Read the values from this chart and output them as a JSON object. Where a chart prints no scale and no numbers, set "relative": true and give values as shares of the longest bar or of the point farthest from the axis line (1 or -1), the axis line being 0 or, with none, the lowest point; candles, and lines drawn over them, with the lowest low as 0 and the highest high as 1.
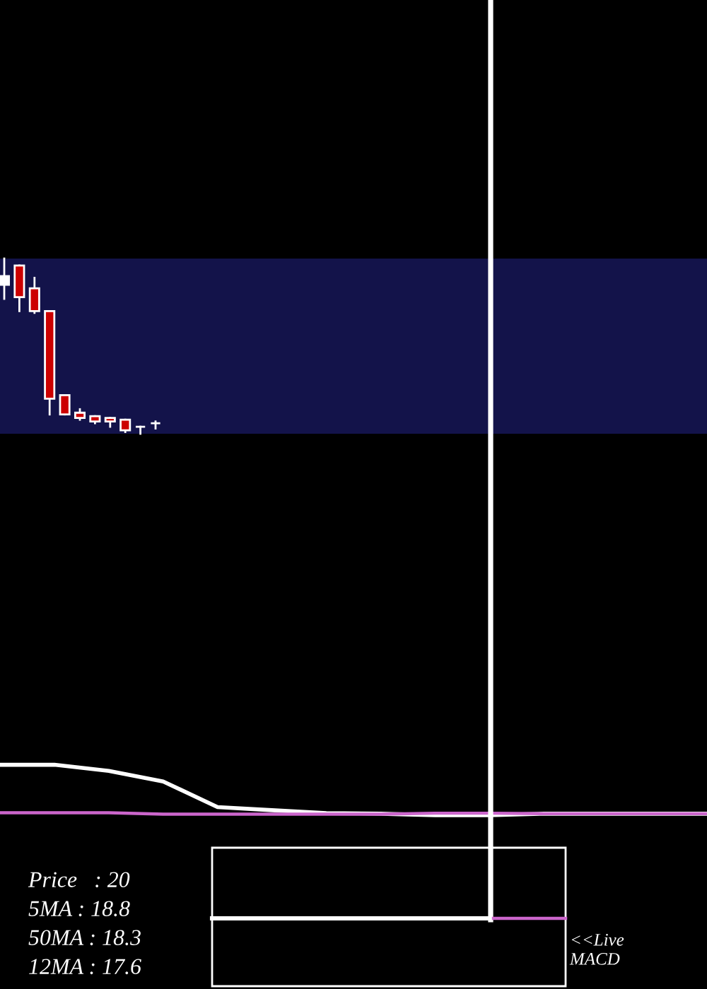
{
  "chart_data": [
    {
      "type": "candlestick",
      "relative": true,
      "categories": [
        null,
        null,
        null,
        null,
        null,
        null,
        null,
        null,
        null,
        null,
        null
      ],
      "ohlc": [
        [
          0.85,
          1.0,
          0.77,
          0.9
        ],
        [
          0.96,
          0.96,
          0.7,
          0.78
        ],
        [
          0.83,
          0.89,
          0.69,
          0.7
        ],
        [
          0.7,
          0.7,
          0.11,
          0.2
        ],
        [
          0.22,
          0.22,
          0.11,
          0.11
        ],
        [
          0.12,
          0.14,
          0.08,
          0.09
        ],
        [
          0.1,
          0.1,
          0.06,
          0.07
        ],
        [
          0.09,
          0.09,
          0.04,
          0.07
        ],
        [
          0.08,
          0.08,
          0.01,
          0.02
        ],
        [
          0.04,
          0.04,
          0.0,
          0.04
        ],
        [
          0.06,
          0.07,
          0.03,
          0.06
        ]
      ],
      "colors": [
        "#ffffff",
        "#cc0000",
        "#cc0000",
        "#cc0000",
        "#cc0000",
        "#cc0000",
        "#cc0000",
        "#cc0000",
        "#cc0000",
        "#ffffff",
        "#ffffff"
      ],
      "annotations": [
        "Price   : 20",
        "5MA : 18.8",
        "50MA : 18.3",
        "12MA : 17.6"
      ],
      "tick_labels": false
    },
    {
      "type": "line",
      "relative": true,
      "categories": [
        null,
        null,
        null,
        null,
        null,
        null,
        null,
        null,
        null,
        null,
        null,
        null,
        null,
        null
      ],
      "series": [
        {
          "color": "#ffffff",
          "values": [
            1.0,
            1.0,
            0.88,
            0.67,
            0.16,
            0.1,
            0.04,
            0.03,
            0.0,
            0.0,
            0.03,
            0.03,
            0.03,
            0.03
          ]
        },
        {
          "color": "#cc66cc",
          "values": [
            0.05,
            0.05,
            0.05,
            0.02,
            0.02,
            0.02,
            0.02,
            0.02,
            0.04,
            0.04,
            0.03,
            0.03,
            0.03,
            0.03
          ]
        }
      ],
      "annotations": [
        "<<Live\nMACD"
      ],
      "tick_labels": false
    }
  ]
}
